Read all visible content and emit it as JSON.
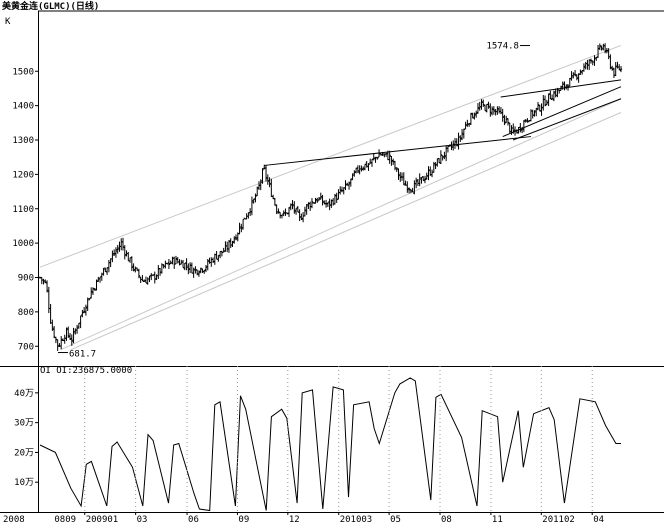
{
  "chart_data": [
    {
      "type": "candlestick",
      "title": "美黄金连(GLMC)(日线)",
      "axis_unit": "K",
      "ylim": [
        660,
        1620
      ],
      "yticks": [
        "700",
        "800",
        "900",
        "1000",
        "1100",
        "1200",
        "1300",
        "1400",
        "1500"
      ],
      "ytick_values": [
        700,
        800,
        900,
        1000,
        1100,
        1200,
        1300,
        1400,
        1500
      ],
      "annotations": [
        {
          "label": "681.7",
          "x": 0.035,
          "value": 681.7
        },
        {
          "label": "1574.8",
          "x": 0.953,
          "value": 1574.8
        }
      ],
      "close_path": [
        [
          0.0,
          900
        ],
        [
          0.012,
          880
        ],
        [
          0.022,
          760
        ],
        [
          0.035,
          700
        ],
        [
          0.05,
          740
        ],
        [
          0.062,
          720
        ],
        [
          0.08,
          790
        ],
        [
          0.1,
          860
        ],
        [
          0.12,
          910
        ],
        [
          0.14,
          960
        ],
        [
          0.158,
          1000
        ],
        [
          0.17,
          960
        ],
        [
          0.185,
          920
        ],
        [
          0.2,
          890
        ],
        [
          0.22,
          900
        ],
        [
          0.24,
          930
        ],
        [
          0.26,
          950
        ],
        [
          0.28,
          940
        ],
        [
          0.3,
          920
        ],
        [
          0.32,
          930
        ],
        [
          0.34,
          960
        ],
        [
          0.36,
          980
        ],
        [
          0.38,
          1020
        ],
        [
          0.4,
          1080
        ],
        [
          0.415,
          1120
        ],
        [
          0.425,
          1160
        ],
        [
          0.435,
          1215
        ],
        [
          0.445,
          1170
        ],
        [
          0.46,
          1100
        ],
        [
          0.475,
          1080
        ],
        [
          0.49,
          1110
        ],
        [
          0.505,
          1070
        ],
        [
          0.52,
          1110
        ],
        [
          0.54,
          1130
        ],
        [
          0.56,
          1110
        ],
        [
          0.58,
          1140
        ],
        [
          0.6,
          1170
        ],
        [
          0.62,
          1220
        ],
        [
          0.64,
          1230
        ],
        [
          0.66,
          1260
        ],
        [
          0.68,
          1250
        ],
        [
          0.695,
          1205
        ],
        [
          0.71,
          1170
        ],
        [
          0.725,
          1160
        ],
        [
          0.74,
          1180
        ],
        [
          0.76,
          1210
        ],
        [
          0.78,
          1250
        ],
        [
          0.8,
          1280
        ],
        [
          0.815,
          1300
        ],
        [
          0.83,
          1350
        ],
        [
          0.845,
          1380
        ],
        [
          0.86,
          1400
        ],
        [
          0.875,
          1390
        ],
        [
          0.89,
          1380
        ],
        [
          0.905,
          1360
        ],
        [
          0.918,
          1320
        ],
        [
          0.93,
          1330
        ],
        [
          0.945,
          1360
        ],
        [
          0.96,
          1380
        ],
        [
          0.975,
          1400
        ],
        [
          0.99,
          1425
        ],
        [
          1.01,
          1445
        ],
        [
          1.03,
          1470
        ],
        [
          1.05,
          1500
        ],
        [
          1.065,
          1520
        ],
        [
          1.08,
          1545
        ],
        [
          1.095,
          1575
        ],
        [
          1.105,
          1540
        ],
        [
          1.115,
          1495
        ],
        [
          1.125,
          1510
        ],
        [
          1.13,
          1505
        ]
      ],
      "trendlines": [
        [
          [
            0.0,
            930
          ],
          [
            1.13,
            1575
          ]
        ],
        [
          [
            0.04,
            690
          ],
          [
            1.13,
            1420
          ]
        ],
        [
          [
            0.06,
            690
          ],
          [
            1.13,
            1380
          ]
        ],
        [
          [
            0.436,
            1226
          ],
          [
            0.955,
            1310
          ]
        ],
        [
          [
            0.896,
            1425
          ],
          [
            1.13,
            1475
          ]
        ],
        [
          [
            0.9,
            1310
          ],
          [
            1.13,
            1455
          ]
        ],
        [
          [
            0.92,
            1300
          ],
          [
            1.13,
            1420
          ]
        ]
      ],
      "colors": {
        "bar": "#000000",
        "trendline": "#000000",
        "channel": "#c8c8c8"
      }
    },
    {
      "type": "line",
      "title": "OI OI:236875.0000",
      "ylim": [
        0,
        470000
      ],
      "yticks": [
        "10万",
        "20万",
        "30万",
        "40万"
      ],
      "ytick_values": [
        100000,
        200000,
        300000,
        400000
      ],
      "xticks": [
        "2008",
        "0809",
        "200901",
        "03",
        "06",
        "09",
        "12",
        "201003",
        "05",
        "08",
        "11",
        "201102",
        "04"
      ],
      "xtick_positions": [
        0.0,
        0.026,
        0.087,
        0.186,
        0.286,
        0.384,
        0.482,
        0.581,
        0.679,
        0.778,
        0.877,
        0.975,
        1.074
      ],
      "x": [
        0.0,
        0.03,
        0.06,
        0.08,
        0.09,
        0.1,
        0.13,
        0.14,
        0.15,
        0.18,
        0.2,
        0.21,
        0.22,
        0.25,
        0.26,
        0.27,
        0.3,
        0.31,
        0.33,
        0.34,
        0.35,
        0.38,
        0.39,
        0.4,
        0.44,
        0.45,
        0.47,
        0.48,
        0.5,
        0.51,
        0.53,
        0.55,
        0.57,
        0.59,
        0.6,
        0.61,
        0.64,
        0.65,
        0.66,
        0.69,
        0.7,
        0.72,
        0.73,
        0.76,
        0.77,
        0.78,
        0.82,
        0.85,
        0.86,
        0.89,
        0.9,
        0.93,
        0.94,
        0.96,
        0.99,
        1.0,
        1.02,
        1.05,
        1.08,
        1.1,
        1.12,
        1.13
      ],
      "values": [
        225000,
        200000,
        80000,
        20000,
        160000,
        170000,
        20000,
        220000,
        235000,
        150000,
        20000,
        260000,
        240000,
        30000,
        225000,
        230000,
        60000,
        10000,
        5000,
        360000,
        370000,
        20000,
        390000,
        345000,
        5000,
        320000,
        345000,
        315000,
        30000,
        400000,
        410000,
        10000,
        420000,
        410000,
        50000,
        360000,
        370000,
        280000,
        230000,
        400000,
        430000,
        450000,
        440000,
        40000,
        385000,
        395000,
        250000,
        20000,
        340000,
        320000,
        100000,
        340000,
        150000,
        330000,
        350000,
        310000,
        30000,
        380000,
        370000,
        290000,
        230000,
        230000
      ],
      "colors": {
        "line": "#000000"
      }
    }
  ]
}
